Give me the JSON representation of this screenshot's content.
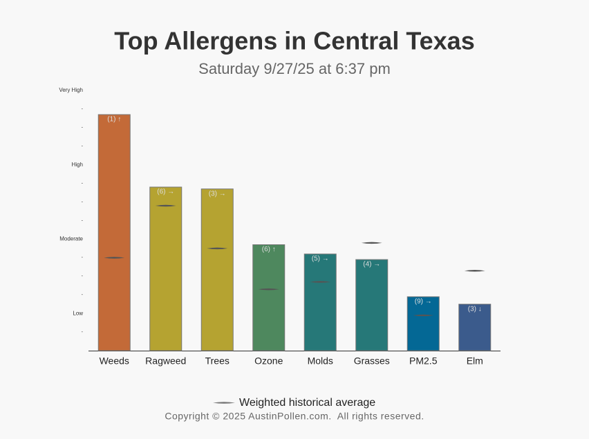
{
  "chart_data": {
    "type": "bar",
    "title": "Top Allergens in Central Texas",
    "subtitle": "Saturday 9/27/25 at 6:37 pm",
    "categories": [
      "Weeds",
      "Ragweed",
      "Trees",
      "Ozone",
      "Molds",
      "Grasses",
      "PM2.5",
      "Elm"
    ],
    "values": [
      12.7,
      8.8,
      8.7,
      5.7,
      5.2,
      4.9,
      2.9,
      2.5
    ],
    "colors": [
      "#c36a38",
      "#b5a331",
      "#b5a331",
      "#4e885e",
      "#267878",
      "#267878",
      "#046895",
      "#3b5b8c"
    ],
    "annotations": [
      "(1) ↑",
      "(6) →",
      "(3) →",
      "(6) ↑",
      "(5) →",
      "(4) →",
      "(9) →",
      "(3) ↓"
    ],
    "averages": {
      "name": "Weighted historical average",
      "color": "#555555",
      "values": [
        5.0,
        7.8,
        5.5,
        3.3,
        3.7,
        5.8,
        1.9,
        4.3
      ]
    },
    "ylim": [
      0,
      14
    ],
    "yticks": [
      {
        "value": 1,
        "label": "-"
      },
      {
        "value": 2,
        "label": "Low"
      },
      {
        "value": 3,
        "label": "-"
      },
      {
        "value": 4,
        "label": "-"
      },
      {
        "value": 5,
        "label": "-"
      },
      {
        "value": 6,
        "label": "Moderate"
      },
      {
        "value": 7,
        "label": "-"
      },
      {
        "value": 8,
        "label": "-"
      },
      {
        "value": 9,
        "label": "-"
      },
      {
        "value": 10,
        "label": "High"
      },
      {
        "value": 11,
        "label": "-"
      },
      {
        "value": 12,
        "label": "-"
      },
      {
        "value": 13,
        "label": "-"
      },
      {
        "value": 14,
        "label": "Very High"
      }
    ],
    "grid": false,
    "footer": "Copyright © 2025 AustinPollen.com.  All rights reserved."
  }
}
